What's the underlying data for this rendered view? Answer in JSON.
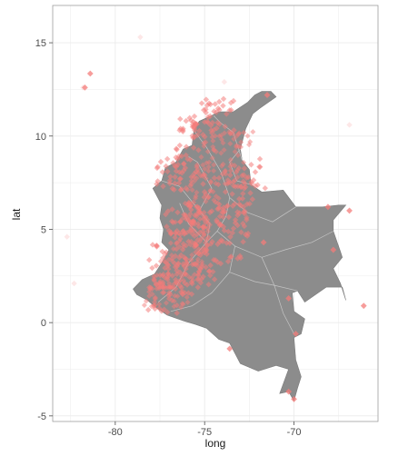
{
  "chart_data": {
    "type": "scatter",
    "title": "",
    "xlabel": "long",
    "ylabel": "lat",
    "xlim": [
      -83.5,
      -65.3
    ],
    "ylim": [
      -5.3,
      17.0
    ],
    "x_ticks": [
      -80,
      -75,
      -70
    ],
    "y_ticks": [
      -5,
      0,
      5,
      10,
      15
    ],
    "x_tick_labels": [
      "-80",
      "-75",
      "-70"
    ],
    "y_tick_labels": [
      "-5",
      "0",
      "5",
      "10",
      "15"
    ],
    "grid": true,
    "legend": "none",
    "background_color": "#ffffff",
    "grid_color": "#ebebeb",
    "map_fill_color": "#8c8c8c",
    "map_border_color": "#cfcfcf",
    "point_color": "#f47c7a",
    "map_outline": [
      [
        -71.3,
        12.4
      ],
      [
        -71.0,
        12.1
      ],
      [
        -71.9,
        11.5
      ],
      [
        -72.3,
        11.2
      ],
      [
        -72.7,
        10.4
      ],
      [
        -73.0,
        9.3
      ],
      [
        -72.9,
        8.7
      ],
      [
        -72.5,
        8.2
      ],
      [
        -72.4,
        7.4
      ],
      [
        -71.8,
        7.0
      ],
      [
        -70.6,
        7.1
      ],
      [
        -69.9,
        6.2
      ],
      [
        -68.4,
        6.2
      ],
      [
        -67.5,
        6.3
      ],
      [
        -67.1,
        6.3
      ],
      [
        -67.8,
        5.5
      ],
      [
        -67.8,
        4.9
      ],
      [
        -67.4,
        3.8
      ],
      [
        -67.3,
        3.5
      ],
      [
        -67.8,
        2.9
      ],
      [
        -67.4,
        2.1
      ],
      [
        -67.1,
        1.2
      ],
      [
        -67.3,
        1.9
      ],
      [
        -68.2,
        1.9
      ],
      [
        -69.4,
        1.1
      ],
      [
        -69.8,
        1.7
      ],
      [
        -70.1,
        1.6
      ],
      [
        -70.0,
        0.6
      ],
      [
        -69.4,
        0.2
      ],
      [
        -69.6,
        -0.6
      ],
      [
        -70.0,
        -0.8
      ],
      [
        -69.9,
        -2.0
      ],
      [
        -69.6,
        -2.9
      ],
      [
        -69.8,
        -3.5
      ],
      [
        -70.0,
        -4.2
      ],
      [
        -70.3,
        -3.7
      ],
      [
        -70.8,
        -3.8
      ],
      [
        -70.3,
        -2.5
      ],
      [
        -71.0,
        -2.3
      ],
      [
        -72.0,
        -2.6
      ],
      [
        -73.0,
        -2.2
      ],
      [
        -73.6,
        -1.1
      ],
      [
        -74.2,
        -0.9
      ],
      [
        -74.9,
        -0.3
      ],
      [
        -75.5,
        -0.1
      ],
      [
        -76.2,
        0.1
      ],
      [
        -77.1,
        0.4
      ],
      [
        -77.7,
        0.8
      ],
      [
        -78.2,
        1.2
      ],
      [
        -78.8,
        1.5
      ],
      [
        -79.0,
        1.8
      ],
      [
        -78.5,
        2.3
      ],
      [
        -77.8,
        2.6
      ],
      [
        -77.4,
        3.2
      ],
      [
        -77.0,
        3.9
      ],
      [
        -77.4,
        4.3
      ],
      [
        -77.3,
        5.0
      ],
      [
        -77.5,
        5.6
      ],
      [
        -77.4,
        6.3
      ],
      [
        -77.9,
        7.2
      ],
      [
        -77.4,
        7.6
      ],
      [
        -77.2,
        8.3
      ],
      [
        -76.6,
        8.6
      ],
      [
        -76.2,
        9.3
      ],
      [
        -75.7,
        9.5
      ],
      [
        -75.6,
        10.3
      ],
      [
        -75.3,
        10.8
      ],
      [
        -74.6,
        11.1
      ],
      [
        -74.2,
        11.3
      ],
      [
        -73.4,
        11.3
      ],
      [
        -72.6,
        11.8
      ],
      [
        -72.2,
        12.2
      ],
      [
        -71.8,
        12.4
      ]
    ],
    "points_dense": [
      [
        -75.6,
        6.25
      ],
      [
        -74.08,
        4.6
      ],
      [
        -76.5,
        3.4
      ],
      [
        -74.8,
        10.95
      ],
      [
        -75.5,
        10.4
      ],
      [
        -73.1,
        7.1
      ],
      [
        -75.7,
        4.8
      ],
      [
        -72.5,
        7.9
      ],
      [
        -76.9,
        8.1
      ],
      [
        -75.9,
        8.7
      ],
      [
        -73.3,
        5.5
      ],
      [
        -75.3,
        2.9
      ],
      [
        -77.3,
        1.2
      ],
      [
        -74.2,
        11.2
      ],
      [
        -76.6,
        2.4
      ]
    ],
    "points_sparse": [
      [
        -81.7,
        12.6
      ],
      [
        -81.4,
        13.35
      ],
      [
        -70.0,
        -4.1
      ],
      [
        -70.3,
        -3.7
      ],
      [
        -66.1,
        0.9
      ],
      [
        -71.5,
        12.2
      ],
      [
        -69.9,
        -0.6
      ],
      [
        -70.3,
        1.3
      ],
      [
        -66.9,
        6.0
      ],
      [
        -68.1,
        6.2
      ],
      [
        -71.7,
        4.3
      ],
      [
        -67.8,
        3.9
      ],
      [
        -73.6,
        -1.4
      ]
    ],
    "points_faint": [
      [
        -82.7,
        4.6
      ],
      [
        -82.3,
        2.1
      ],
      [
        -73.9,
        12.9
      ],
      [
        -66.9,
        10.6
      ],
      [
        -78.6,
        15.3
      ],
      [
        -81.8,
        12.6
      ]
    ]
  }
}
